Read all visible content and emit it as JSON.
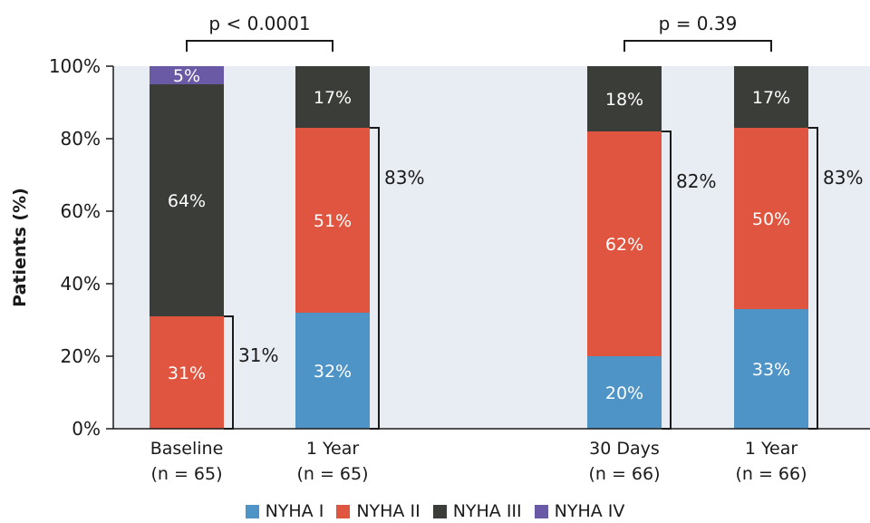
{
  "chart_data": {
    "type": "bar",
    "stacked": true,
    "ylabel": "Patients (%)",
    "ylim": [
      0,
      100
    ],
    "yticks": [
      "0%",
      "20%",
      "40%",
      "60%",
      "80%",
      "100%"
    ],
    "categories": [
      {
        "line1": "Baseline",
        "line2": "(n = 65)"
      },
      {
        "line1": "1 Year",
        "line2": "(n = 65)"
      },
      {
        "line1": "30 Days",
        "line2": "(n = 66)"
      },
      {
        "line1": "1 Year",
        "line2": "(n = 66)"
      }
    ],
    "series": [
      {
        "name": "NYHA I",
        "color": "#4f94c6",
        "values": [
          0,
          32,
          20,
          33
        ]
      },
      {
        "name": "NYHA II",
        "color": "#e0553f",
        "values": [
          31,
          51,
          62,
          50
        ]
      },
      {
        "name": "NYHA III",
        "color": "#3b3d39",
        "values": [
          64,
          17,
          18,
          17
        ]
      },
      {
        "name": "NYHA IV",
        "color": "#6a5aa6",
        "values": [
          5,
          0,
          0,
          0
        ]
      }
    ],
    "segment_labels": [
      [
        "",
        "31%",
        "64%",
        "5%"
      ],
      [
        "32%",
        "51%",
        "17%",
        ""
      ],
      [
        "20%",
        "62%",
        "18%",
        ""
      ],
      [
        "33%",
        "50%",
        "17%",
        ""
      ]
    ],
    "cumulative_brackets": [
      {
        "bar": 0,
        "value": 31,
        "label": "31%"
      },
      {
        "bar": 1,
        "value": 83,
        "label": "83%"
      },
      {
        "bar": 2,
        "value": 82,
        "label": "82%"
      },
      {
        "bar": 3,
        "value": 83,
        "label": "83%"
      }
    ],
    "comparisons": [
      {
        "bars": [
          0,
          1
        ],
        "label": "p < 0.0001"
      },
      {
        "bars": [
          2,
          3
        ],
        "label": "p = 0.39"
      }
    ],
    "grid": false,
    "plot_background": "#e8ecf3",
    "legend_position": "bottom"
  }
}
